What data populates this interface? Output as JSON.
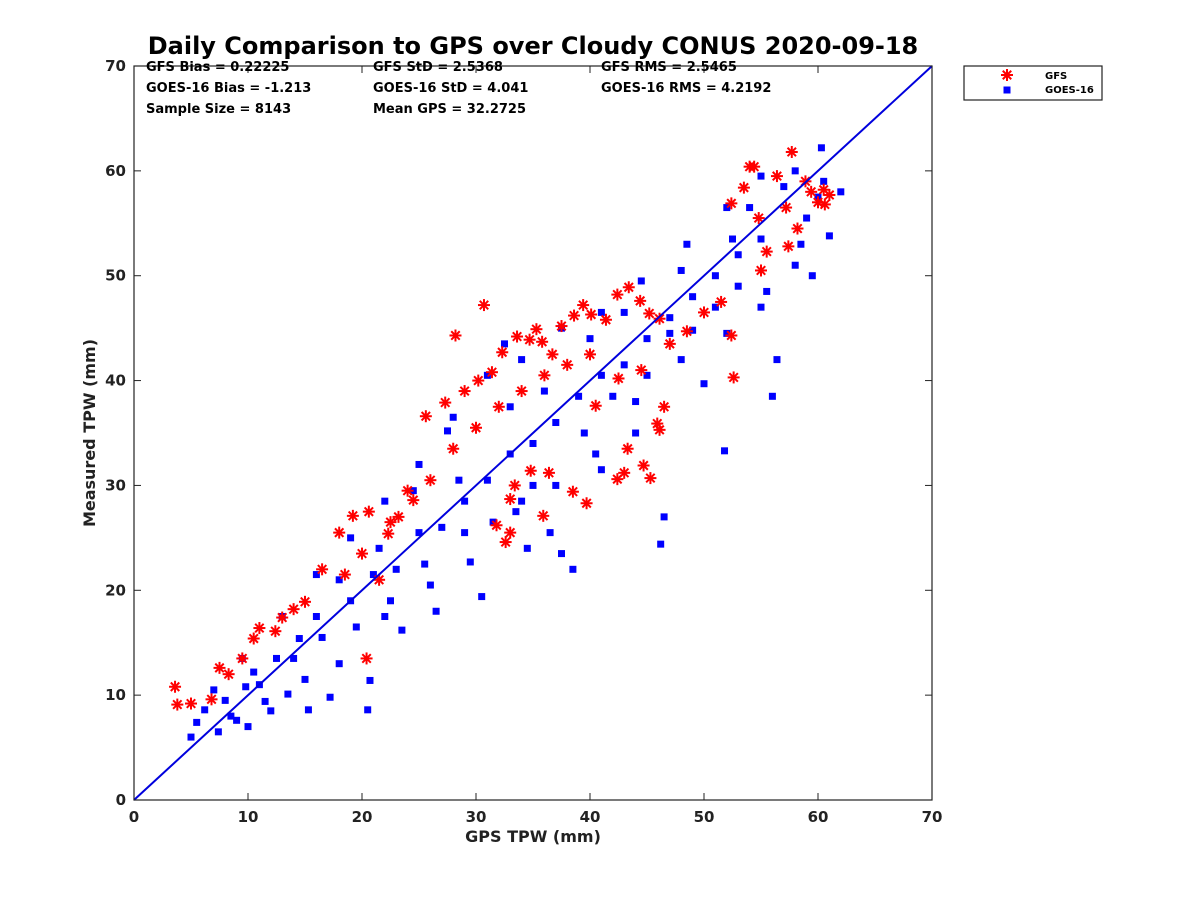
{
  "chart_data": {
    "type": "scatter",
    "title": "Daily Comparison to GPS over Cloudy CONUS 2020-09-18",
    "xlabel": "GPS TPW (mm)",
    "ylabel": "Measured TPW (mm)",
    "xlim": [
      0,
      70
    ],
    "ylim": [
      0,
      70
    ],
    "xticks": [
      "0",
      "10",
      "20",
      "30",
      "40",
      "50",
      "60",
      "70"
    ],
    "yticks": [
      "0",
      "10",
      "20",
      "30",
      "40",
      "50",
      "60",
      "70"
    ],
    "grid": false,
    "legend_position": "outside-top-right",
    "stats": [
      [
        "GFS Bias = 0.22225",
        "GFS StD = 2.5368",
        "GFS RMS = 2.5465"
      ],
      [
        "GOES-16 Bias = -1.213",
        "GOES-16 StD = 4.041",
        "GOES-16 RMS = 4.2192"
      ],
      [
        "Sample Size = 8143",
        "Mean GPS = 32.2725",
        ""
      ]
    ],
    "reference_line": {
      "x": [
        0,
        70
      ],
      "y": [
        0,
        70
      ],
      "color": "#0000dd"
    },
    "series": [
      {
        "name": "GFS",
        "marker": "asterisk",
        "color": "#ff0000",
        "points": [
          [
            3.6,
            10.8
          ],
          [
            3.8,
            9.1
          ],
          [
            5.0,
            9.2
          ],
          [
            6.8,
            9.6
          ],
          [
            7.5,
            12.6
          ],
          [
            8.3,
            12.0
          ],
          [
            9.5,
            13.5
          ],
          [
            10.5,
            15.4
          ],
          [
            11.0,
            16.4
          ],
          [
            12.4,
            16.1
          ],
          [
            13.0,
            17.4
          ],
          [
            14.0,
            18.2
          ],
          [
            15.0,
            18.9
          ],
          [
            16.5,
            22.0
          ],
          [
            18.0,
            25.5
          ],
          [
            19.2,
            27.1
          ],
          [
            20.6,
            27.5
          ],
          [
            22.3,
            25.4
          ],
          [
            21.5,
            21.0
          ],
          [
            20.4,
            13.5
          ],
          [
            23.2,
            27.0
          ],
          [
            24.0,
            29.5
          ],
          [
            25.6,
            36.6
          ],
          [
            27.3,
            37.9
          ],
          [
            28.2,
            44.3
          ],
          [
            29.0,
            39.0
          ],
          [
            30.2,
            40.0
          ],
          [
            30.7,
            47.2
          ],
          [
            31.4,
            40.8
          ],
          [
            32.3,
            42.7
          ],
          [
            33.6,
            44.2
          ],
          [
            34.7,
            43.9
          ],
          [
            35.3,
            44.9
          ],
          [
            35.8,
            43.7
          ],
          [
            36.7,
            42.5
          ],
          [
            37.5,
            45.2
          ],
          [
            38.6,
            46.2
          ],
          [
            39.4,
            47.2
          ],
          [
            40.1,
            46.3
          ],
          [
            41.4,
            45.8
          ],
          [
            42.4,
            48.2
          ],
          [
            43.4,
            48.9
          ],
          [
            44.4,
            47.6
          ],
          [
            45.2,
            46.4
          ],
          [
            46.1,
            45.9
          ],
          [
            33.0,
            28.7
          ],
          [
            33.4,
            30.0
          ],
          [
            34.8,
            31.4
          ],
          [
            35.9,
            27.1
          ],
          [
            36.4,
            31.2
          ],
          [
            38.5,
            29.4
          ],
          [
            39.7,
            28.3
          ],
          [
            42.4,
            30.6
          ],
          [
            43.0,
            31.2
          ],
          [
            44.7,
            31.9
          ],
          [
            45.3,
            30.7
          ],
          [
            45.9,
            35.9
          ],
          [
            46.1,
            35.3
          ],
          [
            46.5,
            37.5
          ],
          [
            43.3,
            33.5
          ],
          [
            40.5,
            37.6
          ],
          [
            42.5,
            40.2
          ],
          [
            44.5,
            41.0
          ],
          [
            47.0,
            43.5
          ],
          [
            48.5,
            44.7
          ],
          [
            50.0,
            46.5
          ],
          [
            51.5,
            47.5
          ],
          [
            52.6,
            40.3
          ],
          [
            52.4,
            44.3
          ],
          [
            52.4,
            56.9
          ],
          [
            53.5,
            58.4
          ],
          [
            54.0,
            60.4
          ],
          [
            54.4,
            60.4
          ],
          [
            54.8,
            55.5
          ],
          [
            55.5,
            52.3
          ],
          [
            56.4,
            59.5
          ],
          [
            57.2,
            56.5
          ],
          [
            57.7,
            61.8
          ],
          [
            58.2,
            54.5
          ],
          [
            58.9,
            59.0
          ],
          [
            59.4,
            58.0
          ],
          [
            60.0,
            57.0
          ],
          [
            60.5,
            58.2
          ],
          [
            61.0,
            57.7
          ],
          [
            60.6,
            56.8
          ],
          [
            57.4,
            52.8
          ],
          [
            55.0,
            50.5
          ],
          [
            18.5,
            21.5
          ],
          [
            20.0,
            23.5
          ],
          [
            22.5,
            26.5
          ],
          [
            24.5,
            28.6
          ],
          [
            26.0,
            30.5
          ],
          [
            28.0,
            33.5
          ],
          [
            30.0,
            35.5
          ],
          [
            32.0,
            37.5
          ],
          [
            34.0,
            39.0
          ],
          [
            36.0,
            40.5
          ],
          [
            38.0,
            41.5
          ],
          [
            40.0,
            42.5
          ],
          [
            33.0,
            25.5
          ],
          [
            32.6,
            24.6
          ],
          [
            31.8,
            26.2
          ]
        ]
      },
      {
        "name": "GOES-16",
        "marker": "square",
        "color": "#0000ff",
        "points": [
          [
            5.0,
            6.0
          ],
          [
            5.5,
            7.4
          ],
          [
            6.2,
            8.6
          ],
          [
            7.4,
            6.5
          ],
          [
            8.0,
            9.5
          ],
          [
            9.0,
            7.6
          ],
          [
            9.8,
            10.8
          ],
          [
            10.5,
            12.2
          ],
          [
            11.5,
            9.4
          ],
          [
            12.5,
            13.5
          ],
          [
            13.5,
            10.1
          ],
          [
            14.5,
            15.4
          ],
          [
            15.3,
            8.6
          ],
          [
            16.0,
            17.5
          ],
          [
            17.2,
            9.8
          ],
          [
            18.0,
            21.0
          ],
          [
            19.5,
            16.5
          ],
          [
            20.5,
            8.6
          ],
          [
            20.7,
            11.4
          ],
          [
            21.5,
            24.0
          ],
          [
            22.5,
            19.0
          ],
          [
            23.5,
            16.2
          ],
          [
            24.5,
            29.5
          ],
          [
            25.5,
            22.5
          ],
          [
            26.5,
            18.0
          ],
          [
            27.5,
            35.2
          ],
          [
            28.5,
            30.5
          ],
          [
            29.5,
            22.7
          ],
          [
            30.5,
            19.4
          ],
          [
            31.5,
            26.5
          ],
          [
            32.5,
            43.5
          ],
          [
            33.0,
            37.5
          ],
          [
            34.0,
            28.5
          ],
          [
            34.5,
            24.0
          ],
          [
            35.0,
            30.0
          ],
          [
            36.0,
            39.0
          ],
          [
            36.5,
            25.5
          ],
          [
            37.5,
            23.5
          ],
          [
            38.5,
            22.0
          ],
          [
            39.5,
            35.0
          ],
          [
            40.0,
            44.0
          ],
          [
            41.0,
            31.5
          ],
          [
            42.0,
            38.5
          ],
          [
            43.0,
            46.5
          ],
          [
            44.0,
            35.0
          ],
          [
            45.0,
            40.5
          ],
          [
            46.2,
            24.4
          ],
          [
            46.5,
            27.0
          ],
          [
            47.0,
            44.5
          ],
          [
            48.0,
            50.5
          ],
          [
            49.0,
            44.8
          ],
          [
            50.0,
            39.7
          ],
          [
            51.0,
            47.0
          ],
          [
            51.8,
            33.3
          ],
          [
            52.5,
            53.5
          ],
          [
            53.0,
            49.0
          ],
          [
            54.0,
            56.5
          ],
          [
            55.0,
            47.0
          ],
          [
            56.0,
            38.5
          ],
          [
            56.4,
            42.0
          ],
          [
            57.0,
            58.5
          ],
          [
            58.0,
            51.0
          ],
          [
            59.0,
            55.5
          ],
          [
            59.5,
            50.0
          ],
          [
            60.0,
            57.5
          ],
          [
            60.3,
            62.2
          ],
          [
            61.0,
            53.8
          ],
          [
            62.0,
            58.0
          ],
          [
            8.5,
            8.0
          ],
          [
            11.0,
            11.0
          ],
          [
            14.0,
            13.5
          ],
          [
            16.5,
            15.5
          ],
          [
            19.0,
            19.0
          ],
          [
            21.0,
            21.5
          ],
          [
            23.0,
            22.0
          ],
          [
            25.0,
            25.5
          ],
          [
            27.0,
            26.0
          ],
          [
            29.0,
            28.5
          ],
          [
            31.0,
            30.5
          ],
          [
            33.0,
            33.0
          ],
          [
            35.0,
            34.0
          ],
          [
            37.0,
            36.0
          ],
          [
            39.0,
            38.5
          ],
          [
            41.0,
            40.5
          ],
          [
            43.0,
            41.5
          ],
          [
            45.0,
            44.0
          ],
          [
            47.0,
            46.0
          ],
          [
            49.0,
            48.0
          ],
          [
            51.0,
            50.0
          ],
          [
            53.0,
            52.0
          ],
          [
            55.0,
            53.5
          ],
          [
            10.0,
            7.0
          ],
          [
            12.0,
            8.5
          ],
          [
            15.0,
            11.5
          ],
          [
            18.0,
            13.0
          ],
          [
            22.0,
            17.5
          ],
          [
            26.0,
            20.5
          ],
          [
            29.0,
            25.5
          ],
          [
            33.5,
            27.5
          ],
          [
            37.0,
            30.0
          ],
          [
            40.5,
            33.0
          ],
          [
            44.0,
            38.0
          ],
          [
            48.0,
            42.0
          ],
          [
            52.0,
            44.5
          ],
          [
            55.5,
            48.5
          ],
          [
            58.5,
            53.0
          ],
          [
            7.0,
            10.5
          ],
          [
            9.5,
            13.5
          ],
          [
            13.0,
            17.5
          ],
          [
            16.0,
            21.5
          ],
          [
            19.0,
            25.0
          ],
          [
            22.0,
            28.5
          ],
          [
            25.0,
            32.0
          ],
          [
            28.0,
            36.5
          ],
          [
            31.0,
            40.5
          ],
          [
            34.0,
            42.0
          ],
          [
            37.5,
            45.0
          ],
          [
            41.0,
            46.5
          ],
          [
            44.5,
            49.5
          ],
          [
            48.5,
            53.0
          ],
          [
            52.0,
            56.5
          ],
          [
            55.0,
            59.5
          ],
          [
            58.0,
            60.0
          ],
          [
            60.5,
            59.0
          ]
        ]
      }
    ]
  }
}
